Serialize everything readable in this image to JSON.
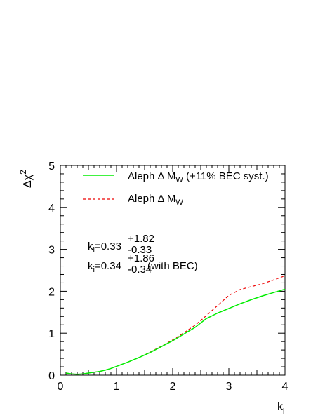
{
  "chart_data": {
    "type": "line",
    "xlabel": "k",
    "xlabel_sub": "i",
    "ylabel": "Δχ",
    "ylabel_sup": "2",
    "xlim": [
      0,
      4
    ],
    "ylim": [
      0,
      5
    ],
    "x_ticks": [
      "0",
      "1",
      "2",
      "3",
      "4"
    ],
    "y_ticks": [
      "0",
      "1",
      "2",
      "3",
      "4",
      "5"
    ],
    "grid": false,
    "legend_position": "top-right",
    "series": [
      {
        "name": "Aleph Δ M_W (+11% BEC syst.)",
        "legend": {
          "pre": "Aleph Δ M",
          "sub": "W",
          "post": " (+11% BEC syst.)"
        },
        "color": "#00ee00",
        "style": "solid",
        "x": [
          0.1,
          0.2,
          0.3,
          0.4,
          0.5,
          0.6,
          0.7,
          0.8,
          0.9,
          1.0,
          1.2,
          1.4,
          1.6,
          1.8,
          2.0,
          2.2,
          2.4,
          2.6,
          2.8,
          3.0,
          3.2,
          3.4,
          3.6,
          3.8,
          4.0
        ],
        "y": [
          0.05,
          0.03,
          0.02,
          0.03,
          0.05,
          0.07,
          0.09,
          0.12,
          0.16,
          0.21,
          0.31,
          0.42,
          0.54,
          0.68,
          0.82,
          0.98,
          1.14,
          1.35,
          1.48,
          1.59,
          1.7,
          1.8,
          1.89,
          1.97,
          2.05
        ]
      },
      {
        "name": "Aleph Δ M_W",
        "legend": {
          "pre": "Aleph Δ M",
          "sub": "W",
          "post": ""
        },
        "color": "#ee0000",
        "style": "dashed",
        "x": [
          0.1,
          0.2,
          0.3,
          0.4,
          0.5,
          0.6,
          0.7,
          0.8,
          0.9,
          1.0,
          1.2,
          1.4,
          1.6,
          1.8,
          2.0,
          2.2,
          2.4,
          2.6,
          2.8,
          3.0,
          3.2,
          3.4,
          3.6,
          3.8,
          4.0
        ],
        "y": [
          0.05,
          0.03,
          0.02,
          0.03,
          0.05,
          0.07,
          0.09,
          0.12,
          0.16,
          0.21,
          0.31,
          0.42,
          0.55,
          0.69,
          0.84,
          1.01,
          1.19,
          1.42,
          1.66,
          1.9,
          2.04,
          2.11,
          2.18,
          2.27,
          2.37
        ]
      }
    ],
    "annotations": [
      {
        "base": "k",
        "base_sub": "i",
        "value": "=0.33",
        "sup": "+1.82",
        "sub": "-0.33",
        "suffix": ""
      },
      {
        "base": "k",
        "base_sub": "i",
        "value": "=0.34",
        "sup": "+1.86",
        "sub": "-0.34",
        "suffix": " (with BEC)"
      }
    ]
  }
}
